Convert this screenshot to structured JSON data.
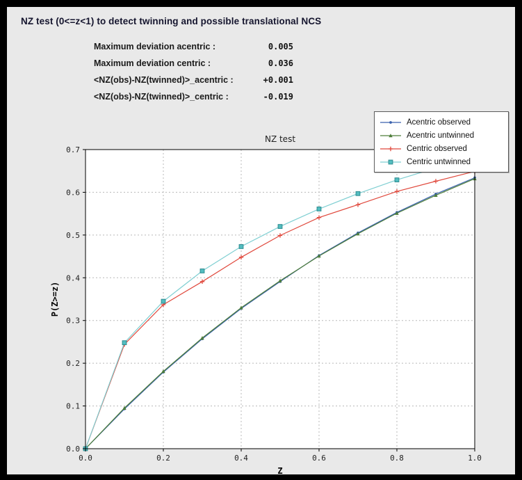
{
  "header": {
    "title": "NZ test (0<=z<1) to detect twinning and possible translational NCS"
  },
  "stats": {
    "rows": [
      {
        "label": "Maximum deviation acentric :",
        "value": "0.005"
      },
      {
        "label": "Maximum deviation centric :",
        "value": "0.036"
      },
      {
        "label": "<NZ(obs)-NZ(twinned)>_acentric :",
        "value": "+0.001"
      },
      {
        "label": "<NZ(obs)-NZ(twinned)>_centric :",
        "value": "-0.019"
      }
    ]
  },
  "chart_data": {
    "type": "line",
    "title": "NZ test",
    "xlabel": "Z",
    "ylabel": "P(Z>=z)",
    "xlim": [
      0.0,
      1.0
    ],
    "ylim": [
      0.0,
      0.7
    ],
    "xticks": [
      0.0,
      0.2,
      0.4,
      0.6,
      0.8,
      1.0
    ],
    "yticks": [
      0.0,
      0.1,
      0.2,
      0.3,
      0.4,
      0.5,
      0.6,
      0.7
    ],
    "grid": true,
    "legend_position": "top-right",
    "x": [
      0.0,
      0.1,
      0.2,
      0.3,
      0.4,
      0.5,
      0.6,
      0.7,
      0.8,
      0.9,
      1.0
    ],
    "series": [
      {
        "name": "Acentric observed",
        "color": "#3b62ad",
        "marker": "circle",
        "values": [
          0.0,
          0.093,
          0.179,
          0.257,
          0.328,
          0.391,
          0.452,
          0.505,
          0.553,
          0.596,
          0.634
        ]
      },
      {
        "name": "Acentric untwinned",
        "color": "#4e7e3a",
        "marker": "triangle",
        "values": [
          0.0,
          0.095,
          0.181,
          0.259,
          0.33,
          0.393,
          0.451,
          0.503,
          0.551,
          0.593,
          0.632
        ]
      },
      {
        "name": "Centric observed",
        "color": "#e0483c",
        "marker": "plus",
        "values": [
          0.0,
          0.244,
          0.337,
          0.391,
          0.448,
          0.499,
          0.541,
          0.571,
          0.602,
          0.626,
          0.649
        ]
      },
      {
        "name": "Centric untwinned",
        "color": "#7fcfd2",
        "marker": "square",
        "marker_fill": "#53bdc0",
        "marker_edge": "#2e8c90",
        "values": [
          0.0,
          0.248,
          0.345,
          0.416,
          0.473,
          0.52,
          0.561,
          0.597,
          0.629,
          0.657,
          0.683
        ]
      }
    ]
  }
}
